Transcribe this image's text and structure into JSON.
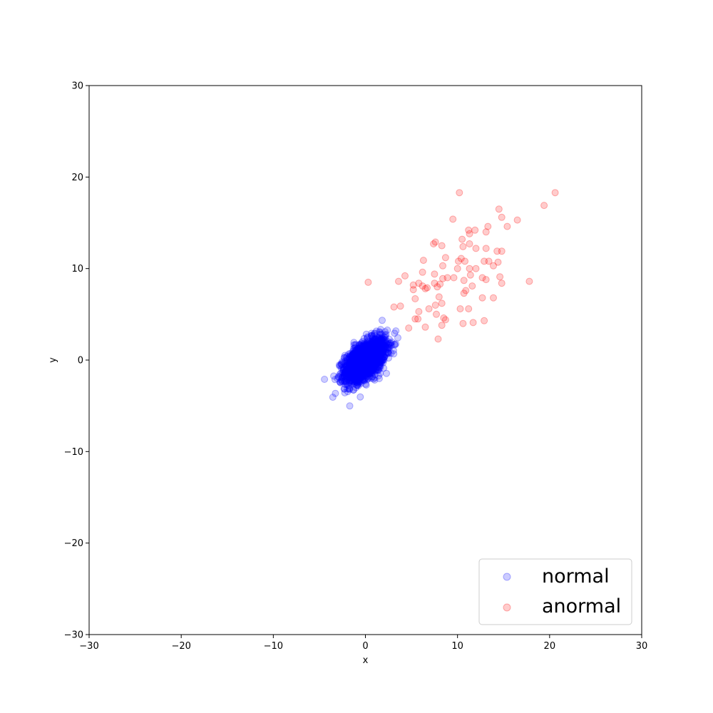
{
  "chart_data": {
    "type": "scatter",
    "title": "",
    "xlabel": "x",
    "ylabel": "y",
    "xlim": [
      -30,
      30
    ],
    "ylim": [
      -30,
      30
    ],
    "xticks": [
      "−30",
      "−20",
      "−10",
      "0",
      "10",
      "20",
      "30"
    ],
    "yticks": [
      "−30",
      "−20",
      "−10",
      "0",
      "10",
      "20",
      "30"
    ],
    "grid": false,
    "legend_position": "lower-right",
    "series": [
      {
        "name": "normal",
        "color": "#0000ff",
        "opacity": 0.2,
        "distribution": {
          "count": 2000,
          "mean": [
            0,
            0
          ],
          "std": [
            1.1,
            1.15
          ],
          "correlation": 0.55
        }
      },
      {
        "name": "anormal",
        "color": "#ff0000",
        "opacity": 0.2,
        "points": [
          [
            10.2,
            18.3
          ],
          [
            20.6,
            18.3
          ],
          [
            19.4,
            16.9
          ],
          [
            14.5,
            16.5
          ],
          [
            14.8,
            15.6
          ],
          [
            16.5,
            15.3
          ],
          [
            9.5,
            15.4
          ],
          [
            15.4,
            14.6
          ],
          [
            13.3,
            14.6
          ],
          [
            11.2,
            14.2
          ],
          [
            11.9,
            14.2
          ],
          [
            13.1,
            14.0
          ],
          [
            11.3,
            13.8
          ],
          [
            10.5,
            13.2
          ],
          [
            7.6,
            12.9
          ],
          [
            7.4,
            12.7
          ],
          [
            8.3,
            12.5
          ],
          [
            10.6,
            12.4
          ],
          [
            11.3,
            12.7
          ],
          [
            13.1,
            12.2
          ],
          [
            12.0,
            12.2
          ],
          [
            14.8,
            11.9
          ],
          [
            14.3,
            11.9
          ],
          [
            8.7,
            11.2
          ],
          [
            10.4,
            11.1
          ],
          [
            10.1,
            10.8
          ],
          [
            6.3,
            10.9
          ],
          [
            10.8,
            10.8
          ],
          [
            12.9,
            10.8
          ],
          [
            13.4,
            10.8
          ],
          [
            14.4,
            10.7
          ],
          [
            13.9,
            10.3
          ],
          [
            8.4,
            10.3
          ],
          [
            10.0,
            10.0
          ],
          [
            11.3,
            10.0
          ],
          [
            12.0,
            10.0
          ],
          [
            6.2,
            9.6
          ],
          [
            7.5,
            9.4
          ],
          [
            11.4,
            9.3
          ],
          [
            4.3,
            9.2
          ],
          [
            14.6,
            9.1
          ],
          [
            12.7,
            9.0
          ],
          [
            9.6,
            9.0
          ],
          [
            8.9,
            9.0
          ],
          [
            13.1,
            8.8
          ],
          [
            8.4,
            8.9
          ],
          [
            10.7,
            8.7
          ],
          [
            17.8,
            8.6
          ],
          [
            14.8,
            8.4
          ],
          [
            0.3,
            8.5
          ],
          [
            3.6,
            8.6
          ],
          [
            5.8,
            8.4
          ],
          [
            7.5,
            8.4
          ],
          [
            8.1,
            8.3
          ],
          [
            5.2,
            8.2
          ],
          [
            6.2,
            8.1
          ],
          [
            7.8,
            8.0
          ],
          [
            11.6,
            8.1
          ],
          [
            6.5,
            7.8
          ],
          [
            6.7,
            7.9
          ],
          [
            5.2,
            7.7
          ],
          [
            10.9,
            7.6
          ],
          [
            10.7,
            7.3
          ],
          [
            8.0,
            6.9
          ],
          [
            5.4,
            6.7
          ],
          [
            12.7,
            6.8
          ],
          [
            13.9,
            6.8
          ],
          [
            8.3,
            6.2
          ],
          [
            7.6,
            6.0
          ],
          [
            3.8,
            5.9
          ],
          [
            3.1,
            5.8
          ],
          [
            6.9,
            5.6
          ],
          [
            10.3,
            5.6
          ],
          [
            11.2,
            5.6
          ],
          [
            5.8,
            5.3
          ],
          [
            7.7,
            5.0
          ],
          [
            8.5,
            4.6
          ],
          [
            8.7,
            4.4
          ],
          [
            5.7,
            4.5
          ],
          [
            5.4,
            4.5
          ],
          [
            12.9,
            4.3
          ],
          [
            11.7,
            4.1
          ],
          [
            10.6,
            4.0
          ],
          [
            8.3,
            3.8
          ],
          [
            6.5,
            3.6
          ],
          [
            4.7,
            3.5
          ],
          [
            7.9,
            2.3
          ]
        ]
      }
    ]
  }
}
